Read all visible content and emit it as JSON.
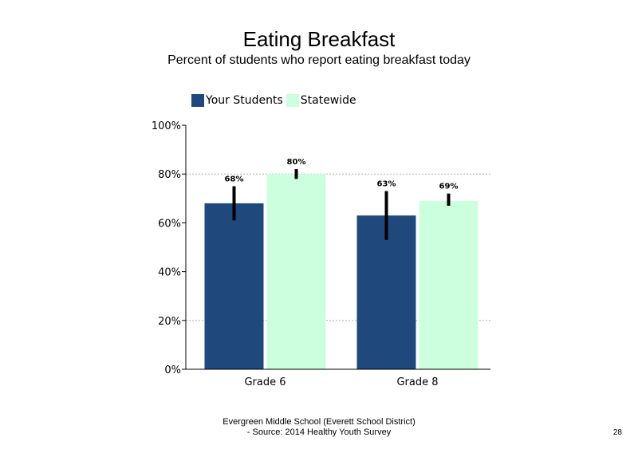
{
  "chart_data": {
    "type": "bar",
    "title": "Eating Breakfast",
    "subtitle": "Percent of students who report eating breakfast today",
    "categories": [
      "Grade 6",
      "Grade 8"
    ],
    "series": [
      {
        "name": "Your Students",
        "color": "#1f497d",
        "values": [
          68,
          63
        ],
        "labels": [
          "68%",
          "63%"
        ],
        "error_low": [
          61,
          53
        ],
        "error_high": [
          75,
          73
        ]
      },
      {
        "name": "Statewide",
        "color": "#ccffdd",
        "values": [
          80,
          69
        ],
        "labels": [
          "80%",
          "69%"
        ],
        "error_low": [
          78,
          67
        ],
        "error_high": [
          82,
          72
        ]
      }
    ],
    "ylim": [
      0,
      100
    ],
    "yticks": [
      0,
      20,
      40,
      60,
      80,
      100
    ],
    "ytick_labels": [
      "0%",
      "20%",
      "40%",
      "60%",
      "80%",
      "100%"
    ],
    "gridlines": [
      20,
      80
    ],
    "legend": "top-left",
    "xlabel": "",
    "ylabel": ""
  },
  "footer": {
    "line1": "Evergreen Middle School (Everett School District)",
    "line2": "- Source: 2014 Healthy  Youth Survey"
  },
  "page_number": "28"
}
